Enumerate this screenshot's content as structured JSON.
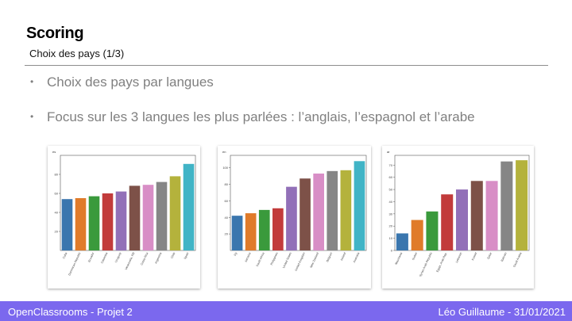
{
  "slide": {
    "title": "Scoring",
    "subtitle": "Choix des pays (1/3)",
    "bullets": [
      "Choix des pays par langues",
      "Focus sur les 3 langues les plus parlées : l’anglais, l’espagnol et l’arabe"
    ]
  },
  "footer": {
    "left": "OpenClassrooms - Projet 2",
    "right": "Léo Guillaume - 31/01/2021"
  },
  "colors": {
    "footer_bg": "#7b68ee",
    "palette": [
      "#3a76ae",
      "#e07b2a",
      "#3a9a3c",
      "#c23b3b",
      "#9270b8",
      "#7d5148",
      "#d88ec6",
      "#868686",
      "#b4b23c",
      "#41b4c6"
    ]
  },
  "chart_data": [
    {
      "type": "bar",
      "ytitle": "es",
      "categories": [
        "Cuba",
        "Dominican Republic",
        "Ecuador",
        "Colombia",
        "Uruguay",
        "Venezuela, RB",
        "Costa Rica",
        "Argentina",
        "Chile",
        "Spain"
      ],
      "values": [
        54,
        55,
        57,
        60,
        62,
        68,
        69,
        72,
        78,
        91
      ],
      "ylim": [
        0,
        100
      ],
      "yticks": [
        20,
        40,
        60,
        80
      ]
    },
    {
      "type": "bar",
      "ytitle": "en",
      "categories": [
        "Fiji",
        "Jamaica",
        "South Africa",
        "Philippines",
        "United States",
        "United Kingdom",
        "New Zealand",
        "Belgium",
        "Ireland",
        "Australia"
      ],
      "values": [
        42,
        45,
        49,
        51,
        77,
        87,
        93,
        96,
        97,
        108
      ],
      "ylim": [
        0,
        115
      ],
      "yticks": [
        20,
        40,
        60,
        80,
        100
      ]
    },
    {
      "type": "bar",
      "ytitle": "ar",
      "categories": [
        "Mauritania",
        "Sudan",
        "Syrian Arab Republic",
        "Egypt, Arab Rep.",
        "Lebanon",
        "Kuwait",
        "Qatar",
        "Bahrain",
        "Saudi Arabia"
      ],
      "values": [
        14,
        25,
        32,
        46,
        50,
        57,
        57,
        73,
        74
      ],
      "ylim": [
        0,
        78
      ],
      "yticks": [
        0,
        10,
        20,
        30,
        40,
        50,
        60,
        70
      ]
    }
  ]
}
